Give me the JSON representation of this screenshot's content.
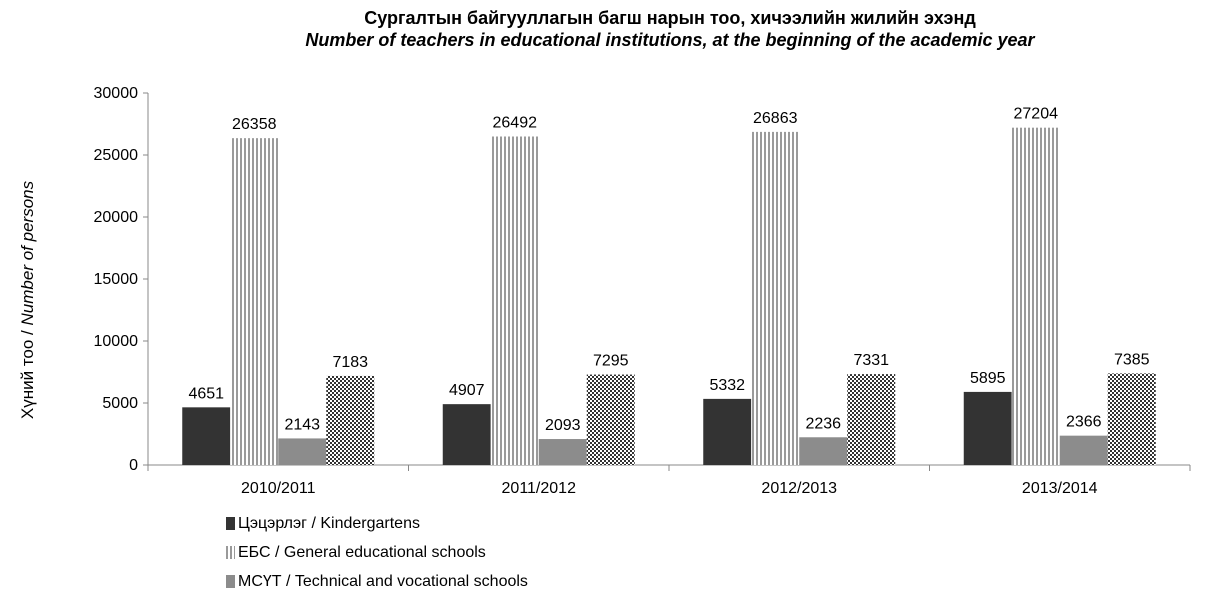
{
  "chart_data": {
    "type": "bar",
    "title": "Сургалтын байгууллагын багш нарын тоо, хичээлийн жилийн эхэнд",
    "subtitle": "Number of teachers in educational institutions, at the beginning of the academic year",
    "ylabel_mn": "Хүний тоо /",
    "ylabel_en": "Number of persons",
    "ylim": [
      0,
      30000
    ],
    "yticks": [
      "0",
      "5000",
      "10000",
      "15000",
      "20000",
      "25000",
      "30000"
    ],
    "categories": [
      "2010/2011",
      "2011/2012",
      "2012/2013",
      "2013/2014"
    ],
    "series": [
      {
        "name": "Цэцэрлэг / Kindergartens",
        "values": [
          4651,
          4907,
          5332,
          5895
        ],
        "color": "#333333",
        "pattern": "solid"
      },
      {
        "name": "ЕБС / General educational schools",
        "values": [
          26358,
          26492,
          26863,
          27204
        ],
        "color": "#ffffff",
        "pattern": "vertical-stripes"
      },
      {
        "name": "МСҮТ / Technical and vocational schools",
        "values": [
          2143,
          2093,
          2236,
          2366
        ],
        "color": "#8c8c8c",
        "pattern": "solid"
      },
      {
        "name": "",
        "values": [
          7183,
          7295,
          7331,
          7385
        ],
        "color": "#444444",
        "pattern": "checker"
      }
    ],
    "legend_position": "bottom-left",
    "grid": false
  }
}
